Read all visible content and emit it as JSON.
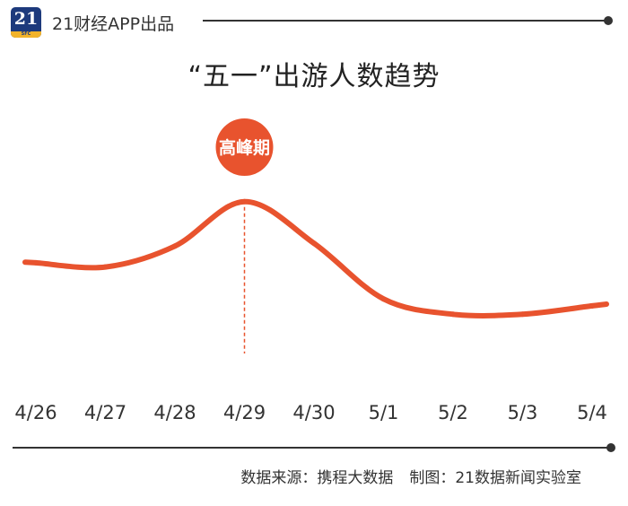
{
  "header": {
    "logo_text": "21",
    "logo_sub": "SFC",
    "brand": "21财经APP出品"
  },
  "footer": {
    "source": "数据来源：携程大数据",
    "credit": "制图：21数据新闻实验室"
  },
  "colors": {
    "line": "#e8532e",
    "text": "#333333"
  },
  "chart_data": {
    "type": "line",
    "title": "“五一”出游人数趋势",
    "xlabel": "",
    "ylabel": "",
    "categories": [
      "4/26",
      "4/27",
      "4/28",
      "4/29",
      "4/30",
      "5/1",
      "5/2",
      "5/3",
      "5/4"
    ],
    "series": [
      {
        "values": [
          0.42,
          0.39,
          0.54,
          0.86,
          0.56,
          0.16,
          0.05,
          0.05,
          0.11
        ]
      }
    ],
    "ylim": [
      0,
      1
    ],
    "y_axis_shown": false,
    "grid": false,
    "annotations": [
      {
        "category": "4/29",
        "label": "高峰期",
        "style": "circle-badge-with-dashed-drop-line"
      }
    ]
  }
}
